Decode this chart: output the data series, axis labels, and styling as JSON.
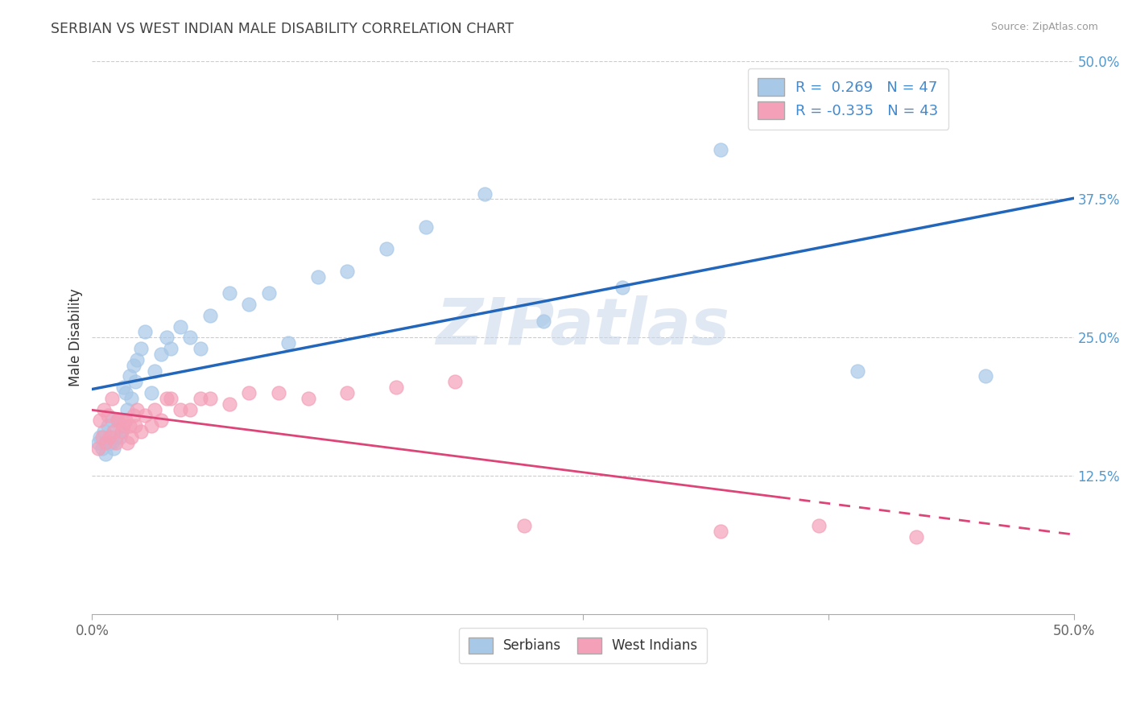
{
  "title": "SERBIAN VS WEST INDIAN MALE DISABILITY CORRELATION CHART",
  "source": "Source: ZipAtlas.com",
  "ylabel": "Male Disability",
  "xlim": [
    0.0,
    0.5
  ],
  "ylim": [
    0.0,
    0.5
  ],
  "r_serbian": 0.269,
  "n_serbian": 47,
  "r_west_indian": -0.335,
  "n_west_indian": 43,
  "serbian_color": "#a8c8e8",
  "west_indian_color": "#f4a0b8",
  "line_serbian_color": "#2266bb",
  "line_west_indian_color": "#dd4477",
  "background_color": "#ffffff",
  "grid_color": "#cccccc",
  "watermark_text": "ZIPatlas",
  "serbian_x": [
    0.003,
    0.004,
    0.005,
    0.006,
    0.007,
    0.008,
    0.009,
    0.01,
    0.01,
    0.011,
    0.012,
    0.013,
    0.014,
    0.015,
    0.016,
    0.017,
    0.018,
    0.019,
    0.02,
    0.021,
    0.022,
    0.023,
    0.025,
    0.027,
    0.03,
    0.032,
    0.035,
    0.038,
    0.04,
    0.045,
    0.05,
    0.055,
    0.06,
    0.07,
    0.08,
    0.09,
    0.1,
    0.115,
    0.13,
    0.15,
    0.17,
    0.2,
    0.23,
    0.27,
    0.32,
    0.39,
    0.455
  ],
  "serbian_y": [
    0.155,
    0.16,
    0.15,
    0.165,
    0.145,
    0.17,
    0.155,
    0.155,
    0.175,
    0.15,
    0.16,
    0.175,
    0.16,
    0.165,
    0.205,
    0.2,
    0.185,
    0.215,
    0.195,
    0.225,
    0.21,
    0.23,
    0.24,
    0.255,
    0.2,
    0.22,
    0.235,
    0.25,
    0.24,
    0.26,
    0.25,
    0.24,
    0.27,
    0.29,
    0.28,
    0.29,
    0.245,
    0.305,
    0.31,
    0.33,
    0.35,
    0.38,
    0.265,
    0.295,
    0.42,
    0.22,
    0.215
  ],
  "west_indian_x": [
    0.003,
    0.004,
    0.005,
    0.006,
    0.007,
    0.008,
    0.009,
    0.01,
    0.011,
    0.012,
    0.013,
    0.014,
    0.015,
    0.016,
    0.017,
    0.018,
    0.019,
    0.02,
    0.021,
    0.022,
    0.023,
    0.025,
    0.027,
    0.03,
    0.032,
    0.035,
    0.038,
    0.04,
    0.045,
    0.05,
    0.055,
    0.06,
    0.07,
    0.08,
    0.095,
    0.11,
    0.13,
    0.155,
    0.185,
    0.22,
    0.32,
    0.37,
    0.42
  ],
  "west_indian_y": [
    0.15,
    0.175,
    0.16,
    0.185,
    0.155,
    0.18,
    0.16,
    0.195,
    0.165,
    0.155,
    0.175,
    0.175,
    0.165,
    0.17,
    0.175,
    0.155,
    0.17,
    0.16,
    0.18,
    0.17,
    0.185,
    0.165,
    0.18,
    0.17,
    0.185,
    0.175,
    0.195,
    0.195,
    0.185,
    0.185,
    0.195,
    0.195,
    0.19,
    0.2,
    0.2,
    0.195,
    0.2,
    0.205,
    0.21,
    0.08,
    0.075,
    0.08,
    0.07
  ],
  "ytick_positions": [
    0.0,
    0.125,
    0.25,
    0.375,
    0.5
  ],
  "ytick_labels": [
    "",
    "12.5%",
    "25.0%",
    "37.5%",
    "50.0%"
  ],
  "xtick_positions": [
    0.0,
    0.125,
    0.25,
    0.375,
    0.5
  ],
  "xtick_labels": [
    "0.0%",
    "",
    "",
    "",
    "50.0%"
  ]
}
